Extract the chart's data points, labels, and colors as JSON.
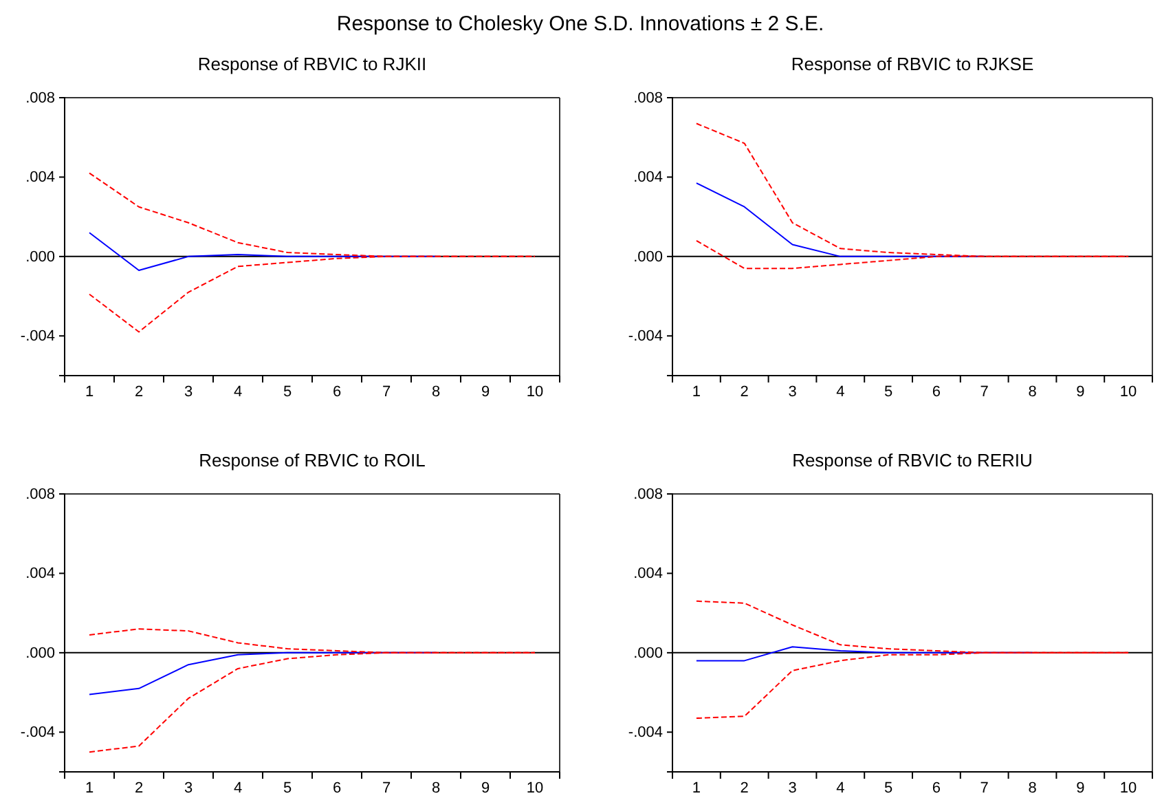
{
  "chart_data": [
    {
      "type": "line",
      "title": "Response of RBVIC to RJKII",
      "annotations": [
        "Response to Cholesky One S.D. Innovations ± 2 S.E."
      ],
      "categories": [
        "1",
        "2",
        "3",
        "4",
        "5",
        "6",
        "7",
        "8",
        "9",
        "10"
      ],
      "ylim": [
        -0.006,
        0.008
      ],
      "yticks": [
        {
          "value": 0.008,
          "label": ".008"
        },
        {
          "value": 0.004,
          "label": ".004"
        },
        {
          "value": 0,
          "label": ".000"
        },
        {
          "value": -0.004,
          "label": "-.004"
        }
      ],
      "ref_lines": [
        {
          "axis": "y",
          "value": 0,
          "color": "#000000"
        }
      ],
      "series": [
        {
          "color": "#0000ff",
          "line_style": "solid",
          "values": [
            0.0012,
            -0.0007,
            0,
            0.0001,
            0,
            0,
            0,
            0,
            null,
            null
          ]
        },
        {
          "color": "#ff0000",
          "line_style": "dashed",
          "values": [
            0.0042,
            0.0025,
            0.0017,
            0.0007,
            0.0002,
            0.0001,
            0,
            0,
            0,
            0
          ]
        },
        {
          "color": "#ff0000",
          "line_style": "dashed",
          "values": [
            -0.0019,
            -0.0038,
            -0.0018,
            -0.0005,
            -0.0003,
            -0.0001,
            0,
            0,
            0,
            0
          ]
        }
      ]
    },
    {
      "type": "line",
      "title": "Response of RBVIC to RJKSE",
      "categories": [
        "1",
        "2",
        "3",
        "4",
        "5",
        "6",
        "7",
        "8",
        "9",
        "10"
      ],
      "ylim": [
        -0.006,
        0.008
      ],
      "yticks": [
        {
          "value": 0.008,
          "label": ".008"
        },
        {
          "value": 0.004,
          "label": ".004"
        },
        {
          "value": 0,
          "label": ".000"
        },
        {
          "value": -0.004,
          "label": "-.004"
        }
      ],
      "ref_lines": [
        {
          "axis": "y",
          "value": 0,
          "color": "#000000"
        }
      ],
      "series": [
        {
          "color": "#0000ff",
          "line_style": "solid",
          "values": [
            0.0037,
            0.0025,
            0.0006,
            0,
            0,
            0,
            0,
            null,
            null,
            null
          ]
        },
        {
          "color": "#ff0000",
          "line_style": "dashed",
          "values": [
            0.0067,
            0.0057,
            0.0017,
            0.0004,
            0.0002,
            0.0001,
            0,
            0,
            0,
            0
          ]
        },
        {
          "color": "#ff0000",
          "line_style": "dashed",
          "values": [
            0.0008,
            -0.0006,
            -0.0006,
            -0.0004,
            -0.0002,
            0,
            0,
            0,
            0,
            0
          ]
        }
      ]
    },
    {
      "type": "line",
      "title": "Response of RBVIC to ROIL",
      "categories": [
        "1",
        "2",
        "3",
        "4",
        "5",
        "6",
        "7",
        "8",
        "9",
        "10"
      ],
      "ylim": [
        -0.006,
        0.008
      ],
      "yticks": [
        {
          "value": 0.008,
          "label": ".008"
        },
        {
          "value": 0.004,
          "label": ".004"
        },
        {
          "value": 0,
          "label": ".000"
        },
        {
          "value": -0.004,
          "label": "-.004"
        }
      ],
      "ref_lines": [
        {
          "axis": "y",
          "value": 0,
          "color": "#000000"
        }
      ],
      "series": [
        {
          "color": "#0000ff",
          "line_style": "solid",
          "values": [
            -0.0021,
            -0.0018,
            -0.0006,
            -0.0001,
            0,
            0,
            0,
            0,
            null,
            null
          ]
        },
        {
          "color": "#ff0000",
          "line_style": "dashed",
          "values": [
            0.0009,
            0.0012,
            0.0011,
            0.0005,
            0.0002,
            0.0001,
            0,
            0,
            0,
            0
          ]
        },
        {
          "color": "#ff0000",
          "line_style": "dashed",
          "values": [
            -0.005,
            -0.0047,
            -0.0023,
            -0.0008,
            -0.0003,
            -0.0001,
            0,
            0,
            0,
            0
          ]
        }
      ]
    },
    {
      "type": "line",
      "title": "Response of RBVIC to RERIU",
      "categories": [
        "1",
        "2",
        "3",
        "4",
        "5",
        "6",
        "7",
        "8",
        "9",
        "10"
      ],
      "ylim": [
        -0.006,
        0.008
      ],
      "yticks": [
        {
          "value": 0.008,
          "label": ".008"
        },
        {
          "value": 0.004,
          "label": ".004"
        },
        {
          "value": 0,
          "label": ".000"
        },
        {
          "value": -0.004,
          "label": "-.004"
        }
      ],
      "ref_lines": [
        {
          "axis": "y",
          "value": 0,
          "color": "#000000"
        }
      ],
      "series": [
        {
          "color": "#0000ff",
          "line_style": "solid",
          "values": [
            -0.0004,
            -0.0004,
            0.0003,
            0.0001,
            0,
            0,
            0,
            0,
            null,
            null
          ]
        },
        {
          "color": "#ff0000",
          "line_style": "dashed",
          "values": [
            0.0026,
            0.0025,
            0.0014,
            0.0004,
            0.0002,
            0.0001,
            0,
            0,
            0,
            0
          ]
        },
        {
          "color": "#ff0000",
          "line_style": "dashed",
          "values": [
            -0.0033,
            -0.0032,
            -0.0009,
            -0.0004,
            -0.0001,
            -0.0001,
            0,
            0,
            0,
            0
          ]
        }
      ]
    }
  ]
}
